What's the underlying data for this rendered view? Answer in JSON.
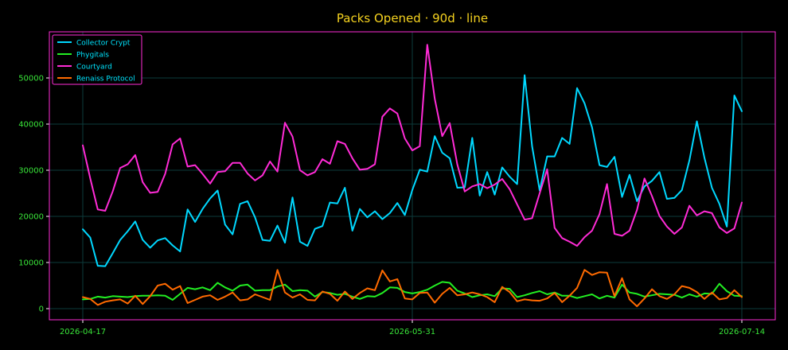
{
  "chart_data": {
    "type": "line",
    "title": "Packs Opened · 90d · line",
    "xlabel": "",
    "ylabel": "",
    "x_start": "2026-04-17",
    "x_end": "2026-07-14",
    "xticks": [
      "2026-04-17",
      "2026-05-31",
      "2026-07-14"
    ],
    "yticks": [
      0,
      10000,
      20000,
      30000,
      40000,
      50000
    ],
    "ylim": [
      -2500,
      60000
    ],
    "grid": true,
    "legend_position": "top-left",
    "colors": {
      "background": "#000000",
      "frame": "#ff2bd6",
      "grid": "#0d3b3b",
      "title": "#f5d21f",
      "ticks": "#39e639",
      "legend_text": "#00e5ff"
    },
    "series": [
      {
        "name": "Collector Crypt",
        "color": "#00d8ff",
        "values": [
          17200,
          15400,
          9300,
          9200,
          12000,
          14900,
          16800,
          18900,
          14900,
          13200,
          14800,
          15300,
          13700,
          12400,
          21500,
          18800,
          21600,
          23900,
          25600,
          18200,
          16100,
          22700,
          23300,
          19800,
          14900,
          14700,
          18000,
          14300,
          24100,
          14500,
          13600,
          17300,
          17900,
          23000,
          22800,
          26200,
          16900,
          21600,
          19800,
          21100,
          19400,
          20700,
          22900,
          20300,
          25700,
          30100,
          29700,
          37400,
          33800,
          32600,
          26200,
          26300,
          37000,
          24500,
          29600,
          24700,
          30600,
          28600,
          27000,
          50600,
          35200,
          25600,
          33000,
          33000,
          37000,
          35700,
          47800,
          44500,
          39300,
          31100,
          30700,
          32900,
          24200,
          29000,
          23300,
          26500,
          27700,
          29600,
          23800,
          24000,
          25700,
          32100,
          40600,
          32700,
          26200,
          22700,
          17800,
          46200,
          42800
        ]
      },
      {
        "name": "Phygitals",
        "color": "#22ee22",
        "values": [
          2000,
          2100,
          2600,
          2400,
          2700,
          2600,
          2500,
          2700,
          2800,
          2800,
          2900,
          2800,
          1900,
          3200,
          4500,
          4200,
          4600,
          4000,
          5600,
          4600,
          3900,
          5000,
          5200,
          3900,
          4000,
          4000,
          4800,
          5200,
          3800,
          4000,
          3900,
          2600,
          3600,
          3400,
          3000,
          3200,
          2600,
          2100,
          2700,
          2600,
          3400,
          4600,
          4500,
          3600,
          3300,
          3600,
          4100,
          5000,
          5800,
          5600,
          3900,
          3300,
          2500,
          2900,
          3100,
          2700,
          4400,
          4300,
          2500,
          2900,
          3400,
          3800,
          3100,
          3500,
          2800,
          2800,
          2300,
          2700,
          3100,
          2200,
          2800,
          2400,
          5200,
          3500,
          3200,
          2600,
          2900,
          3200,
          3100,
          3000,
          2400,
          3100,
          2600,
          3300,
          3200,
          5400,
          3800,
          2800,
          2700
        ]
      },
      {
        "name": "Courtyard",
        "color": "#ff2bd6",
        "values": [
          35400,
          28200,
          21500,
          21200,
          25400,
          30500,
          31300,
          33300,
          27400,
          25100,
          25300,
          29200,
          35600,
          36900,
          30800,
          31100,
          29200,
          27100,
          29600,
          29800,
          31600,
          31600,
          29300,
          27800,
          28900,
          31900,
          29700,
          40300,
          37300,
          30000,
          28900,
          29600,
          32400,
          31400,
          36300,
          35700,
          32600,
          30100,
          30300,
          31300,
          41600,
          43400,
          42300,
          36900,
          34300,
          35200,
          57200,
          45500,
          37400,
          40200,
          31300,
          25400,
          26500,
          27000,
          26100,
          26900,
          28100,
          25900,
          22600,
          19300,
          19600,
          25000,
          30200,
          17500,
          15300,
          14500,
          13600,
          15500,
          16900,
          20500,
          27000,
          16200,
          15800,
          16900,
          21400,
          28200,
          24400,
          20100,
          17800,
          16200,
          17600,
          22300,
          20200,
          21100,
          20700,
          17600,
          16400,
          17400,
          23000
        ]
      },
      {
        "name": "Renaiss Protocol",
        "color": "#ff6a00",
        "values": [
          2500,
          2100,
          800,
          1500,
          1800,
          2000,
          1100,
          2800,
          1000,
          2700,
          5000,
          5400,
          4100,
          4900,
          1200,
          1900,
          2600,
          2900,
          1900,
          2600,
          3500,
          1800,
          2000,
          3100,
          2500,
          1900,
          8400,
          3500,
          2400,
          3100,
          1900,
          1800,
          3700,
          3200,
          1700,
          3700,
          2100,
          3400,
          4400,
          4000,
          8300,
          5900,
          6400,
          2200,
          2000,
          3400,
          3500,
          1300,
          3200,
          4500,
          2900,
          3100,
          3500,
          3100,
          2500,
          1400,
          4700,
          3600,
          1600,
          2000,
          1800,
          1700,
          2200,
          3400,
          1400,
          2800,
          4500,
          8400,
          7300,
          7900,
          7800,
          2700,
          6600,
          2000,
          500,
          2200,
          4200,
          2700,
          2100,
          3100,
          4900,
          4500,
          3600,
          2100,
          3500,
          2000,
          2300,
          4000,
          2500
        ]
      }
    ]
  }
}
